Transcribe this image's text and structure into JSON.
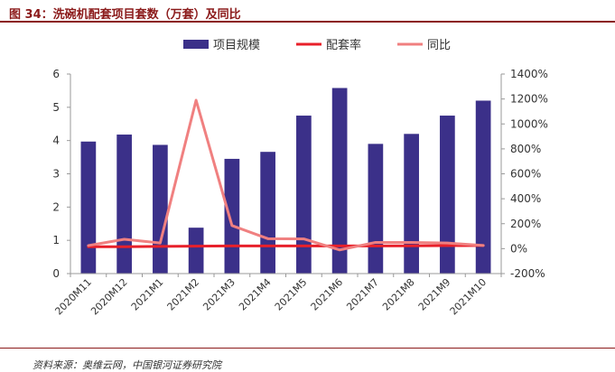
{
  "title": "图 34：洗碗机配套项目套数（万套）及同比",
  "source": "资料来源：奥维云网，中国银河证券研究院",
  "chart_data": {
    "type": "bar+line",
    "categories": [
      "2020M11",
      "2020M12",
      "2021M1",
      "2021M2",
      "2021M3",
      "2021M4",
      "2021M5",
      "2021M6",
      "2021M7",
      "2021M8",
      "2021M9",
      "2021M10"
    ],
    "series": [
      {
        "name": "项目规模",
        "type": "bar",
        "axis": "left",
        "color": "#3b3089",
        "values": [
          3.97,
          4.18,
          3.87,
          1.38,
          3.45,
          3.66,
          4.75,
          5.58,
          3.9,
          4.2,
          4.75,
          5.2
        ]
      },
      {
        "name": "配套率",
        "type": "line",
        "axis": "right",
        "color": "#e8202a",
        "values": [
          15,
          15,
          18,
          20,
          22,
          22,
          22,
          22,
          22,
          23,
          24,
          25
        ]
      },
      {
        "name": "同比",
        "type": "line",
        "axis": "right",
        "color": "#f08080",
        "values": [
          25,
          75,
          45,
          1190,
          185,
          80,
          78,
          -10,
          50,
          50,
          45,
          25
        ]
      }
    ],
    "left_axis": {
      "min": 0,
      "max": 6,
      "ticks": [
        "0",
        "1",
        "2",
        "3",
        "4",
        "5",
        "6"
      ]
    },
    "right_axis": {
      "min": -200,
      "max": 1400,
      "ticks": [
        "-200%",
        "0%",
        "200%",
        "400%",
        "600%",
        "800%",
        "1000%",
        "1200%",
        "1400%"
      ]
    },
    "legend": "top-center"
  }
}
